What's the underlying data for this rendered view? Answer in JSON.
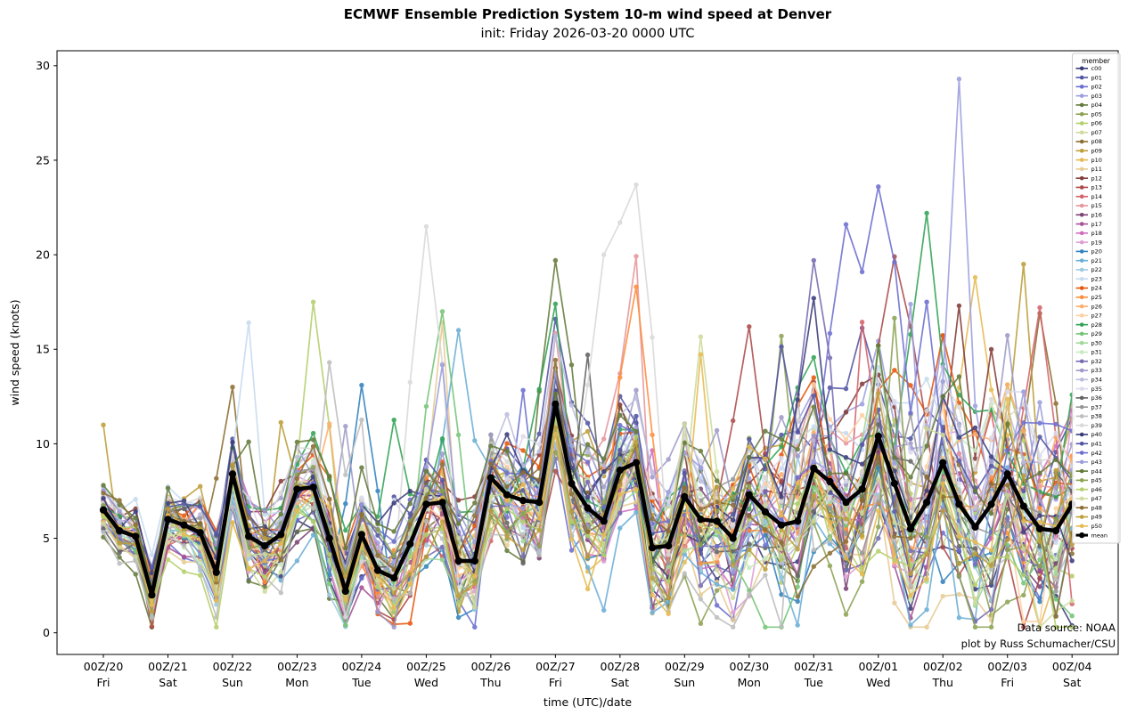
{
  "chart_data": {
    "type": "line",
    "title": "ECMWF Ensemble Prediction System 10-m wind speed at Denver",
    "subtitle": "init: Friday 2026-03-20 0000 UTC",
    "xlabel": "time (UTC)/date",
    "ylabel": "wind speed (knots)",
    "yticks": [
      0,
      5,
      10,
      15,
      20,
      25,
      30
    ],
    "ylim_display": [
      -1.1,
      30.8
    ],
    "timestep_hours": 6,
    "n_points": 61,
    "n_members": 51,
    "grid": false,
    "legend_position": "upper right",
    "xticks": [
      {
        "utc": "00Z/20",
        "day": "Fri"
      },
      {
        "utc": "00Z/21",
        "day": "Sat"
      },
      {
        "utc": "00Z/22",
        "day": "Sun"
      },
      {
        "utc": "00Z/23",
        "day": "Mon"
      },
      {
        "utc": "00Z/24",
        "day": "Tue"
      },
      {
        "utc": "00Z/25",
        "day": "Wed"
      },
      {
        "utc": "00Z/26",
        "day": "Thu"
      },
      {
        "utc": "00Z/27",
        "day": "Fri"
      },
      {
        "utc": "00Z/28",
        "day": "Sat"
      },
      {
        "utc": "00Z/29",
        "day": "Sun"
      },
      {
        "utc": "00Z/30",
        "day": "Mon"
      },
      {
        "utc": "00Z/31",
        "day": "Tue"
      },
      {
        "utc": "00Z/01",
        "day": "Wed"
      },
      {
        "utc": "00Z/02",
        "day": "Thu"
      },
      {
        "utc": "00Z/03",
        "day": "Fri"
      },
      {
        "utc": "00Z/04",
        "day": "Sat"
      }
    ],
    "mean": {
      "name": "mean",
      "color": "#000000",
      "values": [
        6.5,
        5.4,
        5.1,
        2.0,
        6.0,
        5.7,
        5.3,
        3.2,
        8.4,
        5.1,
        4.6,
        5.2,
        7.6,
        7.7,
        5.0,
        2.2,
        5.2,
        3.3,
        2.9,
        4.7,
        6.8,
        6.9,
        3.8,
        3.8,
        8.2,
        7.3,
        7.0,
        6.9,
        12.1,
        7.9,
        6.6,
        5.9,
        8.6,
        9.0,
        4.5,
        4.6,
        7.2,
        6.0,
        5.9,
        5.0,
        7.3,
        6.4,
        5.7,
        5.9,
        8.7,
        8.0,
        6.9,
        7.6,
        10.4,
        7.9,
        5.5,
        6.9,
        9.0,
        6.8,
        5.6,
        6.8,
        8.4,
        6.7,
        5.5,
        5.4,
        6.8
      ]
    },
    "members": {
      "synthetic": true,
      "note": "51 ensemble member traces scatter about the mean; spread grows with lead time; values clipped to >= 0.3 knots",
      "spread_start": 1.55,
      "spread_per_step": 0.075,
      "mean_color": "#000000",
      "color_assignment": "color_cycle[index % 40]",
      "color_cycle": [
        "#393b79",
        "#5254a3",
        "#6b6ecf",
        "#9c9ede",
        "#637939",
        "#8ca252",
        "#b5cf6b",
        "#cedb9c",
        "#8c6d31",
        "#bd9e39",
        "#e7ba52",
        "#e7cb94",
        "#843c39",
        "#ad494a",
        "#d6616b",
        "#e7969c",
        "#7b4173",
        "#a55194",
        "#ce6dbd",
        "#de9ed6",
        "#3182bd",
        "#6baed6",
        "#9ecae1",
        "#c6dbef",
        "#e6550d",
        "#fd8d3c",
        "#fdae6b",
        "#fdd0a2",
        "#31a354",
        "#74c476",
        "#a1d99b",
        "#c7e9c0",
        "#756bb1",
        "#9e9ac8",
        "#bcbddc",
        "#dadaeb",
        "#636363",
        "#969696",
        "#bdbdbd",
        "#d9d9d9"
      ],
      "highlights": [
        [
          "p09",
          0,
          11.0
        ],
        [
          "p08",
          8,
          13.0
        ],
        [
          "p06",
          13,
          17.5
        ],
        [
          "p38",
          14,
          14.3
        ],
        [
          "p20",
          16,
          13.1
        ],
        [
          "p24",
          17,
          1.0
        ],
        [
          "p24",
          18,
          0.45
        ],
        [
          "p24",
          19,
          0.5
        ],
        [
          "p39",
          20,
          21.5
        ],
        [
          "p29",
          21,
          17.0
        ],
        [
          "p21",
          22,
          16.0
        ],
        [
          "p04",
          28,
          19.7
        ],
        [
          "p28",
          28,
          17.4
        ],
        [
          "p36",
          30,
          14.7
        ],
        [
          "p39",
          31,
          20.0
        ],
        [
          "p39",
          32,
          21.7
        ],
        [
          "p39",
          33,
          23.7
        ],
        [
          "p25",
          33,
          18.3
        ],
        [
          "p13",
          40,
          16.2
        ],
        [
          "p05",
          42,
          15.7
        ],
        [
          "p32",
          44,
          19.7
        ],
        [
          "p40",
          44,
          17.7
        ],
        [
          "p42",
          46,
          21.6
        ],
        [
          "p42",
          48,
          23.6
        ],
        [
          "p42",
          49,
          19.6
        ],
        [
          "p13",
          49,
          19.9
        ],
        [
          "p13",
          50,
          16.2
        ],
        [
          "p42",
          51,
          17.5
        ],
        [
          "p28",
          51,
          22.2
        ],
        [
          "p43",
          52,
          13.3
        ],
        [
          "p43",
          53,
          29.3
        ],
        [
          "p43",
          54,
          12.0
        ],
        [
          "p12",
          53,
          17.3
        ],
        [
          "p21",
          53,
          0.8
        ],
        [
          "p21",
          54,
          0.7
        ],
        [
          "p10",
          54,
          18.8
        ],
        [
          "p12",
          55,
          15.0
        ],
        [
          "p27",
          57,
          0.6
        ],
        [
          "p27",
          58,
          0.6
        ],
        [
          "p08",
          58,
          16.9
        ],
        [
          "p14",
          58,
          17.2
        ]
      ]
    },
    "legend": {
      "title": "member",
      "entries": [
        "c00",
        "p01",
        "p02",
        "p03",
        "p04",
        "p05",
        "p06",
        "p07",
        "p08",
        "p09",
        "p10",
        "p11",
        "p12",
        "p13",
        "p14",
        "p15",
        "p16",
        "p17",
        "p18",
        "p19",
        "p20",
        "p21",
        "p22",
        "p23",
        "p24",
        "p25",
        "p26",
        "p27",
        "p28",
        "p29",
        "p30",
        "p31",
        "p32",
        "p33",
        "p34",
        "p35",
        "p36",
        "p37",
        "p38",
        "p39",
        "p40",
        "p41",
        "p42",
        "p43",
        "p44",
        "p45",
        "p46",
        "p47",
        "p48",
        "p49",
        "p50",
        "mean"
      ]
    },
    "annotation": {
      "line1": "Data source: NOAA",
      "line2": "plot by Russ Schumacher/CSU"
    }
  }
}
